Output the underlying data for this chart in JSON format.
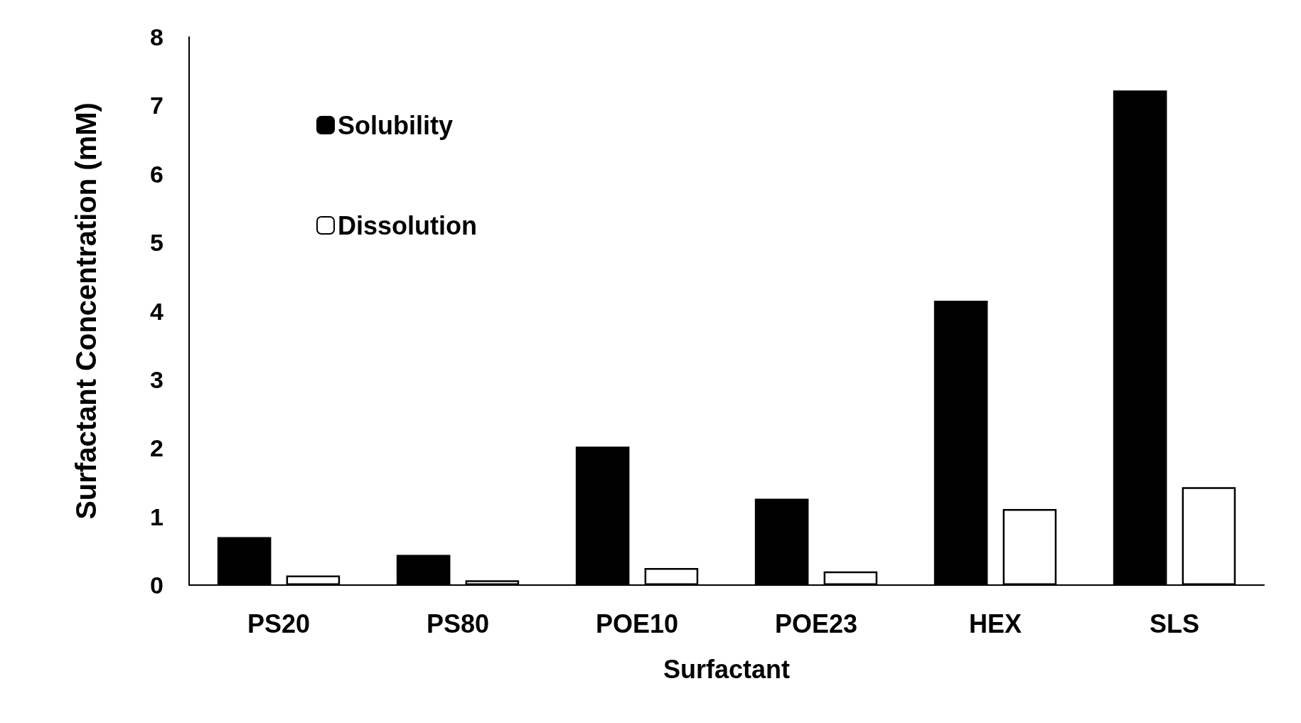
{
  "chart_data": {
    "type": "bar",
    "xlabel": "Surfactant",
    "ylabel": "Surfactant Concentration (mM)",
    "categories": [
      "PS20",
      "PS80",
      "POE10",
      "POE23",
      "HEX",
      "SLS"
    ],
    "series": [
      {
        "name": "Solubility",
        "color": "#000000",
        "values": [
          0.7,
          0.44,
          2.02,
          1.26,
          4.15,
          7.22
        ]
      },
      {
        "name": "Dissolution",
        "color": "#ffffff",
        "values": [
          0.14,
          0.07,
          0.25,
          0.2,
          1.11,
          1.43
        ]
      }
    ],
    "ylim": [
      0,
      8
    ],
    "yticks": [
      0,
      1,
      2,
      3,
      4,
      5,
      6,
      7,
      8
    ],
    "grid": false,
    "legend": "top left"
  }
}
